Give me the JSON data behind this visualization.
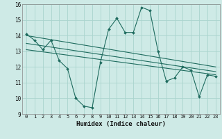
{
  "xlabel": "Humidex (Indice chaleur)",
  "bg_color": "#ceeae6",
  "grid_color": "#aad4ce",
  "line_color": "#1e6b5e",
  "xlim": [
    -0.5,
    23.5
  ],
  "ylim": [
    9,
    16
  ],
  "xticks": [
    0,
    1,
    2,
    3,
    4,
    5,
    6,
    7,
    8,
    9,
    10,
    11,
    12,
    13,
    14,
    15,
    16,
    17,
    18,
    19,
    20,
    21,
    22,
    23
  ],
  "yticks": [
    9,
    10,
    11,
    12,
    13,
    14,
    15,
    16
  ],
  "series1_x": [
    0,
    1,
    2,
    3,
    4,
    5,
    6,
    7,
    8,
    9,
    10,
    11,
    12,
    13,
    14,
    15,
    16,
    17,
    18,
    19,
    20,
    21,
    22,
    23
  ],
  "series1_y": [
    14.1,
    13.7,
    13.1,
    13.7,
    12.4,
    11.9,
    10.0,
    9.5,
    9.4,
    12.3,
    14.4,
    15.1,
    14.2,
    14.2,
    15.8,
    15.6,
    13.0,
    11.1,
    11.3,
    12.0,
    11.8,
    10.1,
    11.5,
    11.4
  ],
  "trend1_x": [
    0,
    23
  ],
  "trend1_y": [
    14.0,
    12.0
  ],
  "trend2_x": [
    0,
    23
  ],
  "trend2_y": [
    13.5,
    11.7
  ],
  "trend3_x": [
    0,
    23
  ],
  "trend3_y": [
    13.1,
    11.5
  ]
}
